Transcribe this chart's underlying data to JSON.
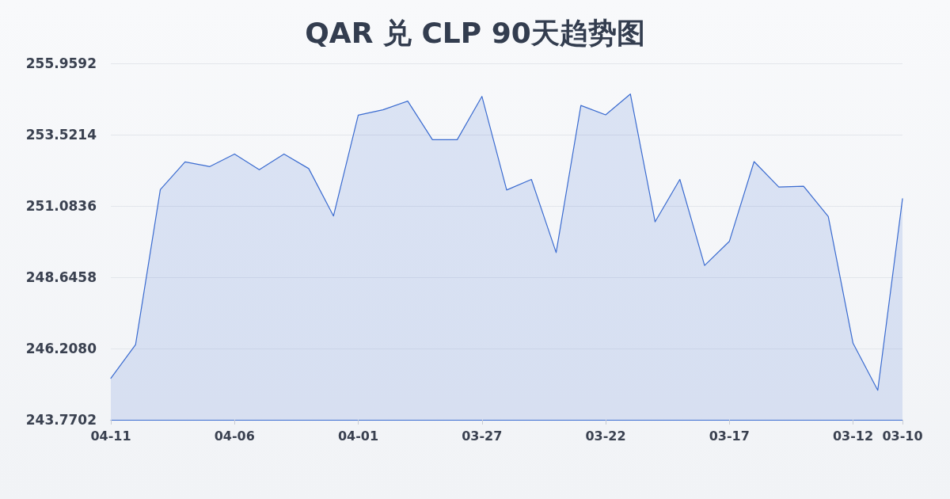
{
  "chart_data": {
    "type": "area",
    "title": "QAR 兑 CLP 90天趋势图",
    "categories": [
      "04-11",
      null,
      null,
      null,
      null,
      "04-06",
      null,
      null,
      null,
      null,
      "04-01",
      null,
      null,
      null,
      null,
      "03-27",
      null,
      null,
      null,
      null,
      "03-22",
      null,
      null,
      null,
      null,
      "03-17",
      null,
      null,
      null,
      null,
      "03-12",
      null,
      "03-10"
    ],
    "values": [
      245.19,
      246.34,
      251.64,
      252.59,
      252.43,
      252.86,
      252.32,
      252.86,
      252.36,
      250.74,
      254.19,
      254.37,
      254.67,
      253.35,
      253.35,
      254.83,
      251.63,
      251.99,
      249.49,
      254.52,
      254.2,
      254.91,
      250.54,
      251.99,
      249.05,
      249.87,
      252.6,
      251.73,
      251.76,
      250.72,
      246.39,
      244.78,
      251.33
    ],
    "color": "#3a6bd0",
    "ylim": [
      243.7702,
      255.9592
    ],
    "yticks": [
      243.7702,
      {
        "value": 246.208,
        "label": "246.2080"
      },
      248.6458,
      251.0836,
      253.5214,
      255.9592
    ],
    "grid": "y",
    "marker": "none",
    "line_style": "solid"
  }
}
